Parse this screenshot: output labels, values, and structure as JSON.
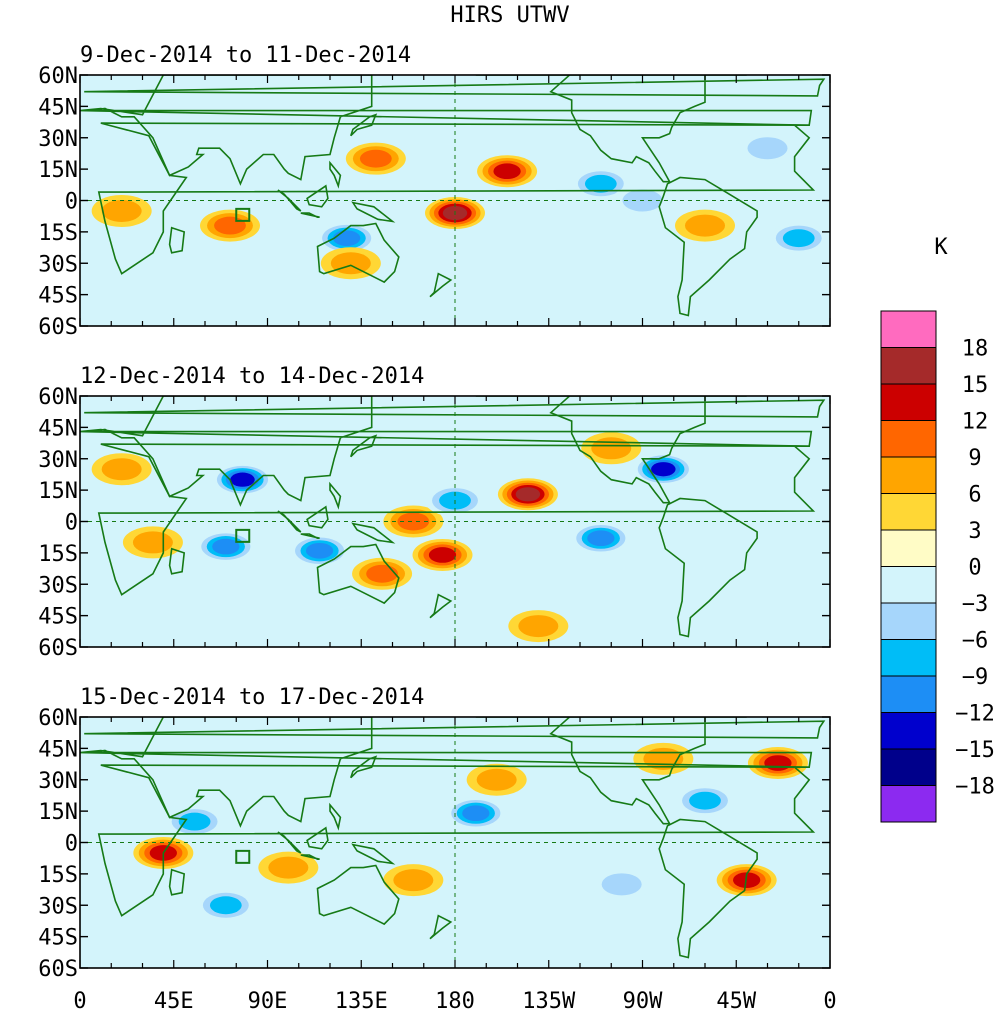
{
  "chart_data": {
    "type": "heatmap",
    "title": "HIRS UTWV",
    "colorbar_unit": "K",
    "colorbar_levels": [
      "18",
      "15",
      "12",
      "9",
      "6",
      "3",
      "0",
      "−3",
      "−6",
      "−9",
      "−12",
      "−15",
      "−18"
    ],
    "colorbar_colors": [
      "#ff6bbf",
      "#a52a2a",
      "#cc0000",
      "#ff6600",
      "#ffa500",
      "#ffd735",
      "#fffcc6",
      "#d3f4fb",
      "#a6d6fb",
      "#00bdf7",
      "#1d8ef5",
      "#0000cd",
      "#00008b",
      "#8c2af0"
    ],
    "x_tick_labels": [
      "0",
      "45E",
      "90E",
      "135E",
      "180",
      "135W",
      "90W",
      "45W",
      "0"
    ],
    "y_tick_labels": [
      "60N",
      "45N",
      "30N",
      "15N",
      "0",
      "15S",
      "30S",
      "45S",
      "60S"
    ],
    "xlim": [
      0,
      360
    ],
    "ylim": [
      -60,
      60
    ],
    "panels": [
      {
        "label": "9-Dec-2014 to 11-Dec-2014",
        "anomalies": [
          {
            "lon": 142,
            "lat": 20,
            "value": 9
          },
          {
            "lon": 205,
            "lat": 14,
            "value": 12
          },
          {
            "lon": 180,
            "lat": -6,
            "value": 15
          },
          {
            "lon": 72,
            "lat": -12,
            "value": 9
          },
          {
            "lon": 128,
            "lat": -18,
            "value": -12
          },
          {
            "lon": 250,
            "lat": 8,
            "value": -9
          },
          {
            "lon": 270,
            "lat": 0,
            "value": -6
          },
          {
            "lon": 330,
            "lat": 25,
            "value": -6
          },
          {
            "lon": 345,
            "lat": -18,
            "value": -9
          },
          {
            "lon": 300,
            "lat": -12,
            "value": 6
          },
          {
            "lon": 130,
            "lat": -30,
            "value": 6
          },
          {
            "lon": 20,
            "lat": -5,
            "value": 6
          }
        ]
      },
      {
        "label": "12-Dec-2014 to 14-Dec-2014",
        "anomalies": [
          {
            "lon": 215,
            "lat": 13,
            "value": 15
          },
          {
            "lon": 174,
            "lat": -16,
            "value": 12
          },
          {
            "lon": 160,
            "lat": 0,
            "value": 9
          },
          {
            "lon": 255,
            "lat": 35,
            "value": 6
          },
          {
            "lon": 280,
            "lat": 25,
            "value": -15
          },
          {
            "lon": 78,
            "lat": 20,
            "value": -15
          },
          {
            "lon": 115,
            "lat": -14,
            "value": -12
          },
          {
            "lon": 70,
            "lat": -12,
            "value": -12
          },
          {
            "lon": 250,
            "lat": -8,
            "value": -12
          },
          {
            "lon": 180,
            "lat": 10,
            "value": -9
          },
          {
            "lon": 145,
            "lat": -25,
            "value": 9
          },
          {
            "lon": 20,
            "lat": 25,
            "value": 6
          },
          {
            "lon": 35,
            "lat": -10,
            "value": 6
          },
          {
            "lon": 220,
            "lat": -50,
            "value": 6
          }
        ]
      },
      {
        "label": "15-Dec-2014 to 17-Dec-2014",
        "anomalies": [
          {
            "lon": 335,
            "lat": 38,
            "value": 12
          },
          {
            "lon": 320,
            "lat": -18,
            "value": 12
          },
          {
            "lon": 40,
            "lat": -5,
            "value": 12
          },
          {
            "lon": 190,
            "lat": 14,
            "value": -12
          },
          {
            "lon": 55,
            "lat": 10,
            "value": -9
          },
          {
            "lon": 300,
            "lat": 20,
            "value": -9
          },
          {
            "lon": 70,
            "lat": -30,
            "value": -9
          },
          {
            "lon": 260,
            "lat": -20,
            "value": -6
          },
          {
            "lon": 200,
            "lat": 30,
            "value": 6
          },
          {
            "lon": 160,
            "lat": -18,
            "value": 6
          },
          {
            "lon": 100,
            "lat": -12,
            "value": 6
          },
          {
            "lon": 280,
            "lat": 40,
            "value": 6
          }
        ]
      }
    ]
  }
}
